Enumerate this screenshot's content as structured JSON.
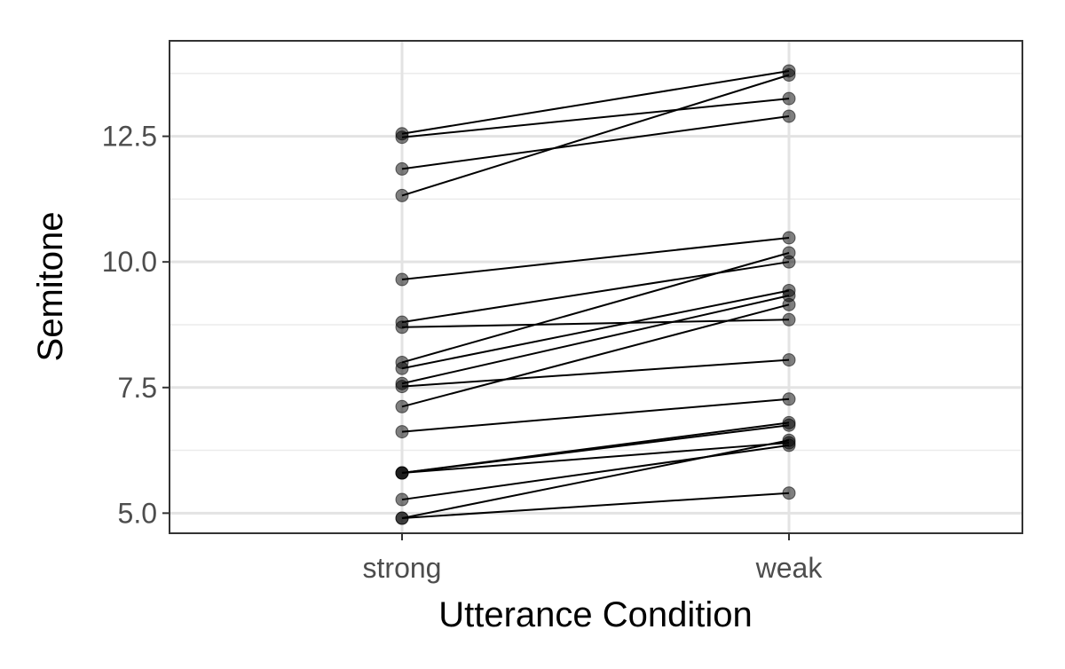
{
  "chart_data": {
    "type": "line",
    "xlabel": "Utterance Condition",
    "ylabel": "Semitone",
    "categories": [
      "strong",
      "weak"
    ],
    "ylim": [
      4.6,
      14.4
    ],
    "y_ticks": [
      5.0,
      7.5,
      10.0,
      12.5
    ],
    "y_tick_labels": [
      "5.0",
      "7.5",
      "10.0",
      "12.5"
    ],
    "grid": true,
    "series": [
      {
        "values": [
          12.55,
          13.8
        ]
      },
      {
        "values": [
          12.48,
          13.25
        ]
      },
      {
        "values": [
          11.85,
          12.9
        ]
      },
      {
        "values": [
          11.32,
          13.72
        ]
      },
      {
        "values": [
          9.65,
          10.48
        ]
      },
      {
        "values": [
          8.8,
          10.0
        ]
      },
      {
        "values": [
          8.7,
          8.85
        ]
      },
      {
        "values": [
          8.0,
          10.18
        ]
      },
      {
        "values": [
          7.88,
          9.43
        ]
      },
      {
        "values": [
          7.58,
          9.33
        ]
      },
      {
        "values": [
          7.52,
          8.05
        ]
      },
      {
        "values": [
          7.12,
          9.15
        ]
      },
      {
        "values": [
          6.62,
          7.27
        ]
      },
      {
        "values": [
          5.8,
          6.8
        ]
      },
      {
        "values": [
          5.8,
          6.75
        ]
      },
      {
        "values": [
          5.8,
          6.4
        ]
      },
      {
        "values": [
          5.27,
          6.35
        ]
      },
      {
        "values": [
          4.9,
          6.45
        ]
      },
      {
        "values": [
          4.9,
          5.4
        ]
      }
    ]
  }
}
